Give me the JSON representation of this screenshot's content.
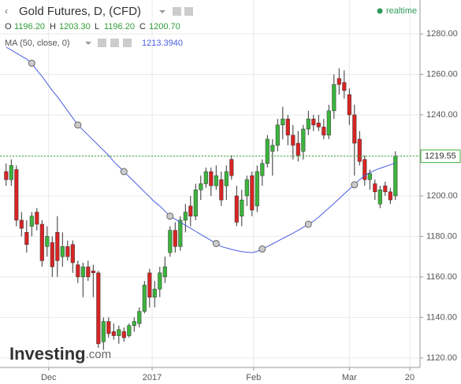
{
  "chart_data": {
    "type": "candlestick",
    "title": "Gold Futures, D, (CFD)",
    "realtime_label": "realtime",
    "readout": [
      {
        "name": "O",
        "value": 1196.2,
        "label": "1196.20"
      },
      {
        "name": "H",
        "value": 1203.3,
        "label": "1203.30"
      },
      {
        "name": "L",
        "value": 1196.2,
        "label": "1196.20"
      },
      {
        "name": "C",
        "value": 1200.7,
        "label": "1200.70"
      }
    ],
    "up_color": "#3cb43c",
    "down_color": "#d92424",
    "open": [
      1212,
      1208,
      1213,
      1188,
      1182,
      1185,
      1192,
      1186,
      1175,
      1177,
      1182,
      1170,
      1175,
      1176,
      1166,
      1160,
      1165,
      1163,
      1162,
      1128,
      1138,
      1133,
      1131,
      1133,
      1131,
      1136,
      1137,
      1143,
      1162,
      1150,
      1154,
      1160,
      1172,
      1183,
      1175,
      1188,
      1195,
      1190,
      1203,
      1206,
      1212,
      1205,
      1208,
      1205,
      1218,
      1200,
      1190,
      1200,
      1210,
      1195,
      1210,
      1216,
      1222,
      1225,
      1235,
      1238,
      1230,
      1226,
      1222,
      1233,
      1238,
      1236,
      1234,
      1230,
      1242,
      1258,
      1256,
      1250,
      1240,
      1228,
      1218,
      1208,
      1206,
      1196,
      1205,
      1202,
      1200
    ],
    "high": [
      1216,
      1218,
      1215,
      1192,
      1188,
      1192,
      1194,
      1188,
      1185,
      1180,
      1190,
      1182,
      1178,
      1178,
      1168,
      1167,
      1168,
      1166,
      1163,
      1140,
      1140,
      1137,
      1136,
      1135,
      1137,
      1140,
      1145,
      1158,
      1164,
      1158,
      1165,
      1170,
      1185,
      1187,
      1190,
      1196,
      1200,
      1206,
      1210,
      1214,
      1214,
      1215,
      1212,
      1215,
      1220,
      1205,
      1203,
      1210,
      1212,
      1215,
      1218,
      1230,
      1228,
      1238,
      1244,
      1240,
      1235,
      1232,
      1235,
      1242,
      1240,
      1240,
      1238,
      1245,
      1260,
      1263,
      1262,
      1253,
      1245,
      1232,
      1220,
      1213,
      1208,
      1205,
      1207,
      1204,
      1222
    ],
    "low": [
      1205,
      1205,
      1185,
      1180,
      1172,
      1180,
      1183,
      1165,
      1170,
      1160,
      1160,
      1165,
      1168,
      1162,
      1157,
      1150,
      1158,
      1150,
      1125,
      1124,
      1130,
      1129,
      1127,
      1128,
      1130,
      1133,
      1135,
      1142,
      1145,
      1145,
      1150,
      1157,
      1170,
      1172,
      1173,
      1182,
      1185,
      1188,
      1198,
      1204,
      1200,
      1203,
      1195,
      1198,
      1208,
      1185,
      1185,
      1195,
      1190,
      1192,
      1205,
      1214,
      1210,
      1222,
      1228,
      1225,
      1218,
      1217,
      1218,
      1230,
      1232,
      1232,
      1228,
      1228,
      1238,
      1250,
      1248,
      1235,
      1210,
      1215,
      1205,
      1203,
      1198,
      1194,
      1200,
      1196,
      1198
    ],
    "close": [
      1208,
      1215,
      1188,
      1184,
      1176,
      1190,
      1186,
      1168,
      1180,
      1165,
      1168,
      1175,
      1170,
      1167,
      1160,
      1165,
      1160,
      1162,
      1127,
      1138,
      1132,
      1131,
      1134,
      1130,
      1136,
      1138,
      1143,
      1156,
      1150,
      1154,
      1162,
      1165,
      1183,
      1175,
      1188,
      1192,
      1190,
      1203,
      1206,
      1212,
      1205,
      1210,
      1198,
      1212,
      1210,
      1187,
      1198,
      1208,
      1193,
      1212,
      1216,
      1228,
      1225,
      1235,
      1238,
      1230,
      1225,
      1220,
      1233,
      1238,
      1235,
      1234,
      1230,
      1242,
      1255,
      1255,
      1252,
      1240,
      1226,
      1217,
      1208,
      1211,
      1202,
      1203,
      1202,
      1198,
      1219.55
    ],
    "ma": {
      "name": "MA (50, close, 0)",
      "color": "#4a5de0",
      "readout": {
        "value": 1213.394,
        "label": "1213.3940"
      },
      "values": [
        1273.4,
        1272,
        1270.5,
        1269,
        1267.5,
        1265.5,
        1262,
        1259,
        1255.5,
        1252,
        1249,
        1245.5,
        1242,
        1238.5,
        1235,
        1232.5,
        1230,
        1227.5,
        1225,
        1222.5,
        1220,
        1217,
        1214.5,
        1212,
        1209.5,
        1207,
        1204.5,
        1202,
        1199.5,
        1197,
        1195,
        1192.5,
        1190,
        1188.5,
        1187,
        1185.5,
        1184,
        1182.5,
        1181,
        1179.5,
        1178,
        1176.5,
        1175,
        1174.3,
        1173.6,
        1173,
        1172.5,
        1172.2,
        1172,
        1172.6,
        1173.8,
        1175,
        1176.3,
        1177.6,
        1179,
        1180.3,
        1181.6,
        1183,
        1184.5,
        1186,
        1187.5,
        1189.5,
        1191.8,
        1194,
        1196.3,
        1198.6,
        1201,
        1203.3,
        1205.5,
        1208,
        1210,
        1211.5,
        1212.7,
        1213.6,
        1214.5,
        1215.4,
        1216.3
      ]
    },
    "xlim": [
      -1.2,
      80.8
    ],
    "xticks": [
      {
        "value": 8.3,
        "label": "Dec"
      },
      {
        "value": 28.5,
        "label": "2017"
      },
      {
        "value": 48.3,
        "label": "Feb"
      },
      {
        "value": 67,
        "label": "Mar"
      },
      {
        "value": 78.8,
        "label": "20"
      }
    ],
    "ylim": [
      1115.3,
      1296.7
    ],
    "yticks": [
      {
        "value": 1120,
        "label": "1120.00"
      },
      {
        "value": 1140,
        "label": "1140.00"
      },
      {
        "value": 1160,
        "label": "1160.00"
      },
      {
        "value": 1180,
        "label": "1180.00"
      },
      {
        "value": 1200,
        "label": "1200.00"
      },
      {
        "value": 1220,
        "label": "1220.00"
      },
      {
        "value": 1240,
        "label": "1240.00"
      },
      {
        "value": 1260,
        "label": "1260.00"
      },
      {
        "value": 1280,
        "label": "1280.00"
      }
    ],
    "grid": true,
    "logo": {
      "main": "Investing",
      "suffix": ".com"
    }
  }
}
